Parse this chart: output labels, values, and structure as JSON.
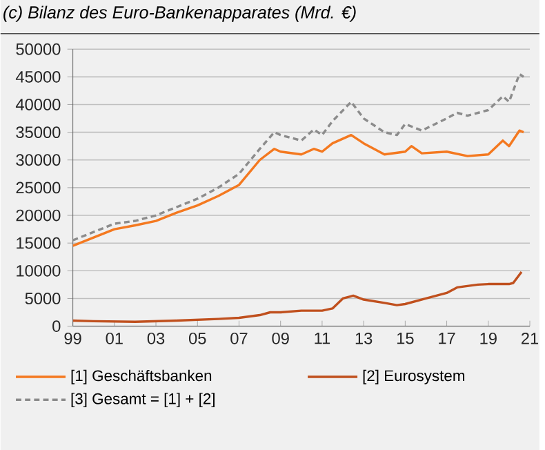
{
  "chart_data": {
    "type": "line",
    "title": "(c) Bilanz des Euro-Bankenapparates (Mrd. €)",
    "xlim": [
      1999,
      2021
    ],
    "xticks": [
      {
        "value": 1999,
        "label": "99"
      },
      {
        "value": 2001,
        "label": "01"
      },
      {
        "value": 2003,
        "label": "03"
      },
      {
        "value": 2005,
        "label": "05"
      },
      {
        "value": 2007,
        "label": "07"
      },
      {
        "value": 2009,
        "label": "09"
      },
      {
        "value": 2011,
        "label": "11"
      },
      {
        "value": 2013,
        "label": "13"
      },
      {
        "value": 2015,
        "label": "15"
      },
      {
        "value": 2017,
        "label": "17"
      },
      {
        "value": 2019,
        "label": "19"
      },
      {
        "value": 2021,
        "label": "21"
      }
    ],
    "ylim": [
      0,
      50000
    ],
    "yticks": [
      0,
      5000,
      10000,
      15000,
      20000,
      25000,
      30000,
      35000,
      40000,
      45000,
      50000
    ],
    "grid": "y",
    "legend": "bottom",
    "marker": "none",
    "series": [
      {
        "name": "[1] Geschäftsbanken",
        "color": "#f47920",
        "line_style": "solid",
        "x": [
          1999,
          2000,
          2001,
          2002,
          2003,
          2004,
          2005,
          2006,
          2007,
          2008,
          2008.7,
          2009,
          2010,
          2010.6,
          2011,
          2011.5,
          2012.4,
          2013,
          2014,
          2015,
          2015.3,
          2015.8,
          2017,
          2018,
          2019,
          2019.7,
          2020,
          2020.5,
          2020.7
        ],
        "values": [
          14500,
          16000,
          17500,
          18200,
          19000,
          20500,
          21800,
          23500,
          25500,
          30000,
          32000,
          31500,
          31000,
          32000,
          31500,
          33000,
          34500,
          33000,
          31000,
          31500,
          32500,
          31200,
          31500,
          30700,
          31000,
          33500,
          32500,
          35300,
          35000
        ]
      },
      {
        "name": "[2] Eurosystem",
        "color": "#c0501e",
        "line_style": "solid",
        "x": [
          1999,
          2000,
          2002,
          2004,
          2006,
          2007,
          2008,
          2008.5,
          2009,
          2010,
          2011,
          2011.5,
          2012,
          2012.5,
          2013,
          2014,
          2014.6,
          2015,
          2016,
          2017,
          2017.5,
          2018.5,
          2019,
          2020,
          2020.2,
          2020.6
        ],
        "values": [
          1000,
          900,
          800,
          1000,
          1300,
          1500,
          2000,
          2500,
          2500,
          2800,
          2800,
          3200,
          5000,
          5500,
          4800,
          4200,
          3800,
          4000,
          5000,
          6000,
          7000,
          7500,
          7600,
          7600,
          7800,
          9800
        ]
      },
      {
        "name": "[3] Gesamt = [1] + [2]",
        "color": "#8c8c8c",
        "line_style": "dashed",
        "x": [
          1999,
          2000,
          2001,
          2002,
          2003,
          2004,
          2005,
          2006,
          2007,
          2008,
          2008.7,
          2009,
          2010,
          2010.6,
          2011,
          2011.5,
          2012.4,
          2013,
          2014,
          2014.6,
          2015,
          2015.8,
          2017,
          2017.5,
          2018,
          2019,
          2019.7,
          2020,
          2020.5,
          2020.7
        ],
        "values": [
          15500,
          17000,
          18500,
          19000,
          20000,
          21500,
          23000,
          25000,
          27500,
          32000,
          35000,
          34500,
          33500,
          35500,
          34500,
          37000,
          40500,
          37500,
          35000,
          34500,
          36500,
          35300,
          37500,
          38500,
          38000,
          39000,
          41500,
          40500,
          45500,
          45000
        ]
      }
    ]
  }
}
